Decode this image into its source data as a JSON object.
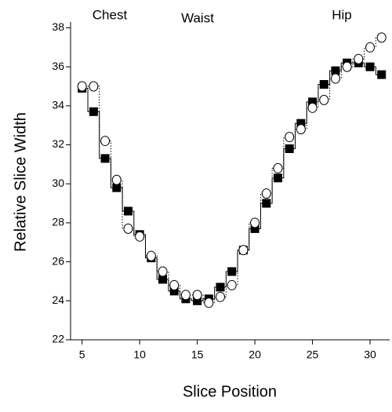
{
  "chart_data": {
    "type": "scatter-step",
    "annotations": [
      "Chest",
      "Waist",
      "Hip"
    ],
    "x_label": "Slice Position",
    "y_label": "Relative Slice Width",
    "x": [
      5,
      6,
      7,
      8,
      9,
      10,
      11,
      12,
      13,
      14,
      15,
      16,
      17,
      18,
      19,
      20,
      21,
      22,
      23,
      24,
      25,
      26,
      27,
      28,
      29,
      30,
      31
    ],
    "series": [
      {
        "marker": "square",
        "line": "solid",
        "color": "#000000",
        "values": [
          34.9,
          33.7,
          31.3,
          29.8,
          28.6,
          27.4,
          26.2,
          25.1,
          24.5,
          24.1,
          24.0,
          24.1,
          24.7,
          25.5,
          26.6,
          27.7,
          29.0,
          30.3,
          31.8,
          33.1,
          34.2,
          35.1,
          35.8,
          36.2,
          36.2,
          36.0,
          35.6
        ]
      },
      {
        "marker": "circle",
        "line": "dotted",
        "color": "#000000",
        "values": [
          35.0,
          35.0,
          32.2,
          30.2,
          27.7,
          27.3,
          26.3,
          25.5,
          24.8,
          24.3,
          24.3,
          23.9,
          24.2,
          24.8,
          26.6,
          28.0,
          29.5,
          30.8,
          32.4,
          32.8,
          33.9,
          34.3,
          35.4,
          36.0,
          36.4,
          37.0,
          37.5
        ]
      }
    ],
    "xlim": [
      4,
      31.7
    ],
    "ylim": [
      22,
      38.3
    ],
    "xticks": [
      5,
      10,
      15,
      20,
      25,
      30
    ],
    "yticks": [
      22,
      24,
      26,
      28,
      30,
      32,
      34,
      36,
      38
    ]
  }
}
